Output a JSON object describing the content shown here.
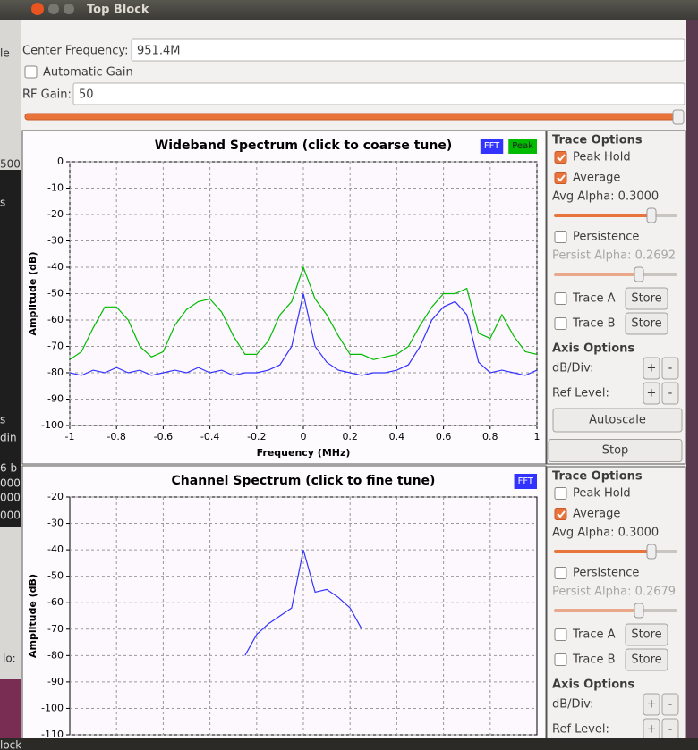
{
  "window": {
    "title": "Top Block"
  },
  "background_texts": [
    "le",
    "500",
    "s",
    "s",
    "din",
    "6 b",
    "000",
    "000",
    "000",
    "lo:",
    "lock"
  ],
  "controls": {
    "center_frequency_label": "Center Frequency:",
    "center_frequency_value": "951.4M",
    "automatic_gain": "Automatic Gain",
    "rf_gain_label": "RF Gain:",
    "rf_gain_value": "50"
  },
  "chart_data": [
    {
      "type": "line",
      "title": "Wideband Spectrum (click to coarse tune)",
      "x_label": "Frequency (MHz)",
      "y_label": "Amplitude (dB)",
      "xlim": [
        -1,
        1
      ],
      "ylim": [
        -100,
        0
      ],
      "xticks": [
        -1,
        -0.8,
        -0.6,
        -0.4,
        -0.2,
        0,
        0.2,
        0.4,
        0.6,
        0.8,
        1
      ],
      "yticks": [
        0,
        -10,
        -20,
        -30,
        -40,
        -50,
        -60,
        -70,
        -80,
        -90,
        -100
      ],
      "grid": true,
      "x": [
        -1,
        -0.95,
        -0.9,
        -0.85,
        -0.8,
        -0.75,
        -0.7,
        -0.65,
        -0.6,
        -0.55,
        -0.5,
        -0.45,
        -0.4,
        -0.35,
        -0.3,
        -0.25,
        -0.2,
        -0.15,
        -0.1,
        -0.05,
        0,
        0.05,
        0.1,
        0.15,
        0.2,
        0.25,
        0.3,
        0.35,
        0.4,
        0.45,
        0.5,
        0.55,
        0.6,
        0.65,
        0.7,
        0.75,
        0.8,
        0.85,
        0.9,
        0.95,
        1
      ],
      "series": [
        {
          "name": "FFT",
          "color": "#3333ff",
          "values": [
            -80,
            -81,
            -79,
            -80,
            -78,
            -80,
            -79,
            -81,
            -80,
            -79,
            -80,
            -78,
            -80,
            -79,
            -81,
            -80,
            -80,
            -79,
            -77,
            -70,
            -50,
            -70,
            -76,
            -79,
            -80,
            -81,
            -80,
            -80,
            -79,
            -77,
            -70,
            -60,
            -55,
            -53,
            -58,
            -76,
            -80,
            -79,
            -80,
            -81,
            -79
          ]
        },
        {
          "name": "Peak",
          "color": "#00bb00",
          "values": [
            -75,
            -72,
            -63,
            -55,
            -55,
            -60,
            -70,
            -74,
            -72,
            -62,
            -56,
            -53,
            -52,
            -57,
            -66,
            -73,
            -73,
            -68,
            -58,
            -53,
            -40,
            -52,
            -58,
            -66,
            -73,
            -73,
            -75,
            -74,
            -73,
            -70,
            -62,
            -55,
            -50,
            -50,
            -48,
            -65,
            -67,
            -58,
            -66,
            -72,
            -73
          ]
        }
      ]
    },
    {
      "type": "line",
      "title": "Channel Spectrum (click to fine tune)",
      "y_label": "Amplitude (dB)",
      "ylim": [
        -110,
        -20
      ],
      "yticks": [
        -20,
        -30,
        -40,
        -50,
        -60,
        -70,
        -80,
        -90,
        -100,
        -110
      ],
      "grid": true,
      "series": [
        {
          "name": "FFT",
          "color": "#3333ff",
          "values": [
            null,
            null,
            null,
            null,
            null,
            null,
            null,
            null,
            null,
            null,
            null,
            null,
            null,
            null,
            null,
            -80,
            -72,
            -68,
            -65,
            -62,
            -40,
            -56,
            -55,
            -58,
            -62,
            -70,
            null,
            null,
            null,
            null,
            null,
            null,
            null,
            null,
            null,
            null,
            null,
            null,
            null,
            null,
            null
          ]
        }
      ]
    }
  ],
  "panels": [
    {
      "trace_options": "Trace Options",
      "peak_hold": {
        "label": "Peak Hold",
        "checked": true
      },
      "average": {
        "label": "Average",
        "checked": true
      },
      "avg_alpha": "Avg Alpha: 0.3000",
      "persistence": {
        "label": "Persistence",
        "checked": false
      },
      "persist_alpha": "Persist Alpha: 0.2692",
      "trace_a": {
        "label": "Trace A",
        "button": "Store"
      },
      "trace_b": {
        "label": "Trace B",
        "button": "Store"
      },
      "axis_options": "Axis Options",
      "db_div": "dB/Div:",
      "ref_level": "Ref Level:",
      "plus": "+",
      "minus": "-",
      "autoscale": "Autoscale",
      "stop": "Stop"
    },
    {
      "trace_options": "Trace Options",
      "peak_hold": {
        "label": "Peak Hold",
        "checked": false
      },
      "average": {
        "label": "Average",
        "checked": true
      },
      "avg_alpha": "Avg Alpha: 0.3000",
      "persistence": {
        "label": "Persistence",
        "checked": false
      },
      "persist_alpha": "Persist Alpha: 0.2679",
      "trace_a": {
        "label": "Trace A",
        "button": "Store"
      },
      "trace_b": {
        "label": "Trace B",
        "button": "Store"
      },
      "axis_options": "Axis Options",
      "db_div": "dB/Div:",
      "ref_level": "Ref Level:",
      "plus": "+",
      "minus": "-"
    }
  ]
}
